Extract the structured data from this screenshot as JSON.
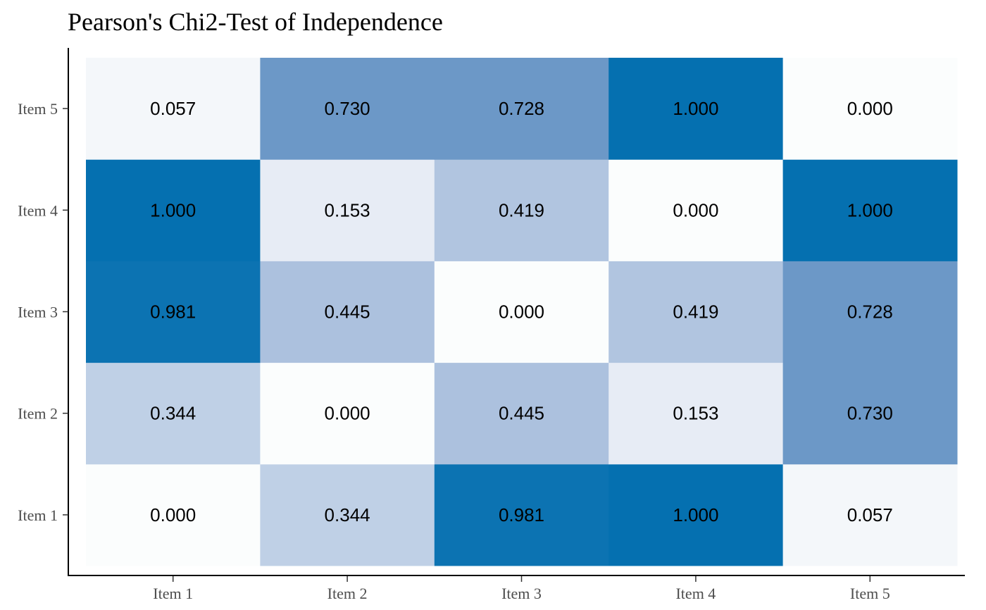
{
  "chart_data": {
    "type": "heatmap",
    "title": "Pearson's Chi2-Test of Independence",
    "xlabel": "",
    "ylabel": "",
    "x_categories": [
      "Item 1",
      "Item 2",
      "Item 3",
      "Item 4",
      "Item 5"
    ],
    "y_categories": [
      "Item 1",
      "Item 2",
      "Item 3",
      "Item 4",
      "Item 5"
    ],
    "values": [
      [
        "0.000",
        "0.344",
        "0.981",
        "1.000",
        "0.057"
      ],
      [
        "0.344",
        "0.000",
        "0.445",
        "0.153",
        "0.730"
      ],
      [
        "0.981",
        "0.445",
        "0.000",
        "0.419",
        "0.728"
      ],
      [
        "1.000",
        "0.153",
        "0.419",
        "0.000",
        "1.000"
      ],
      [
        "0.057",
        "0.730",
        "0.728",
        "1.000",
        "0.000"
      ]
    ],
    "color_scale": {
      "low": "#fbfdfd",
      "high": "#0570b0"
    },
    "grid": false,
    "legend": "none"
  }
}
